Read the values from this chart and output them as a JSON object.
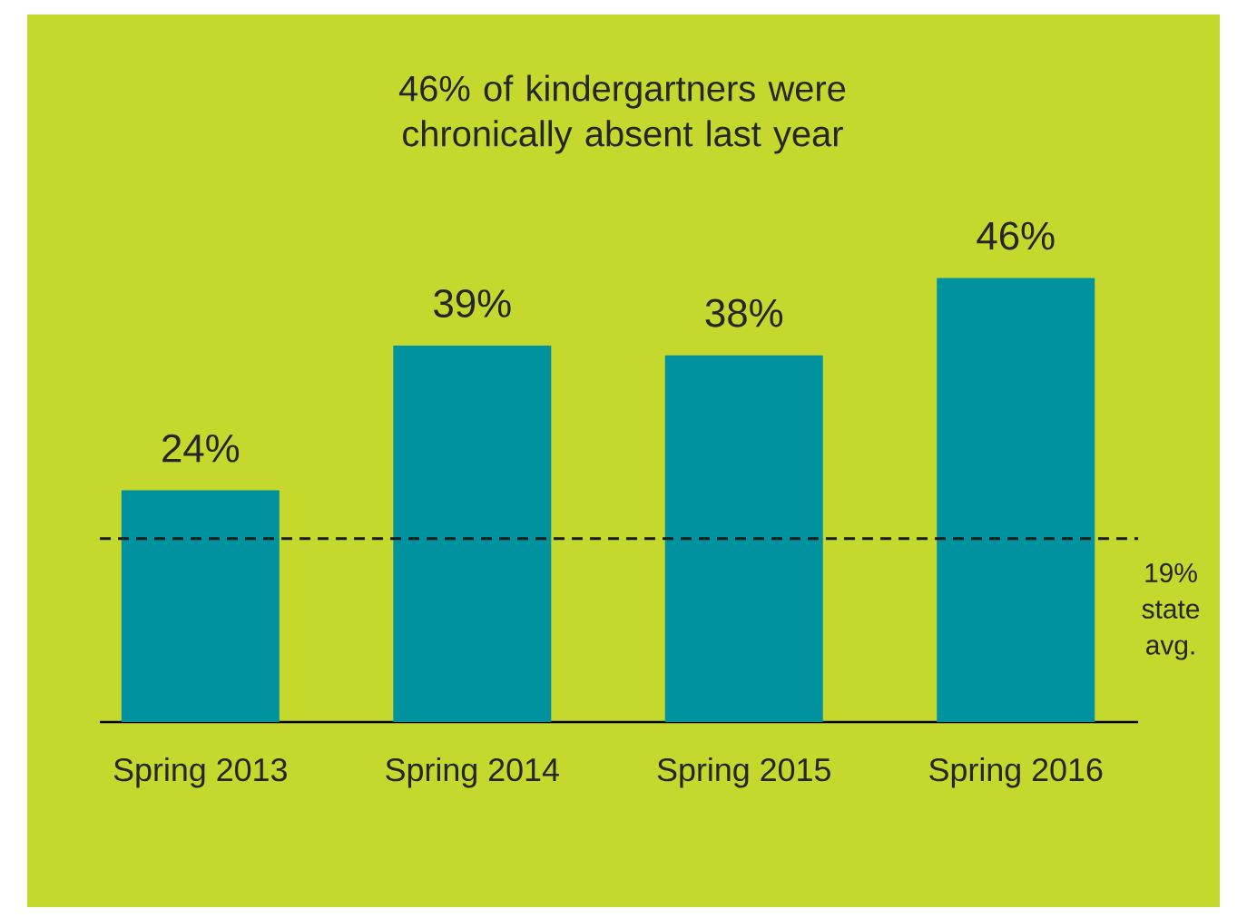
{
  "chart_data": {
    "type": "bar",
    "title": "46% of kindergartners were chronically absent last year",
    "categories": [
      "Spring 2013",
      "Spring 2014",
      "Spring 2015",
      "Spring 2016"
    ],
    "values": [
      24,
      39,
      38,
      46
    ],
    "value_labels": [
      "24%",
      "39%",
      "38%",
      "46%"
    ],
    "color": "#00929f",
    "tick_labels": "x",
    "ref_lines": [
      {
        "axis": "y",
        "value": 19,
        "label": "19% state avg.",
        "color": "#1a1a1a",
        "line_style": "dashed"
      }
    ]
  }
}
